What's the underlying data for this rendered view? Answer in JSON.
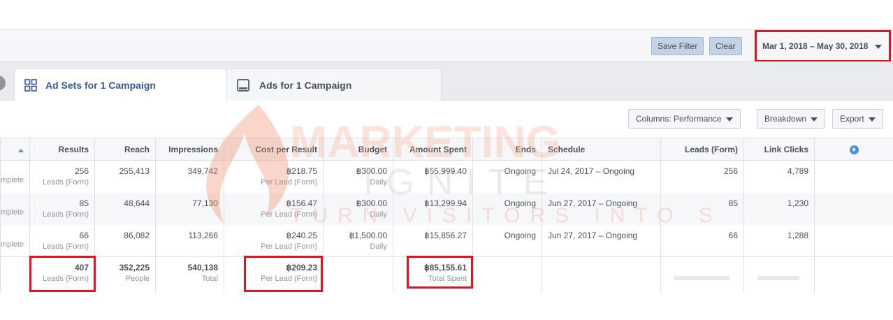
{
  "filterbar": {
    "save_filter": "Save Filter",
    "clear": "Clear",
    "date_range": "Mar 1, 2018 – May 30, 2018"
  },
  "tabs": [
    {
      "label": "Ad Sets for 1 Campaign",
      "icon": "grid-icon",
      "active": true
    },
    {
      "label": "Ads for 1 Campaign",
      "icon": "ad-icon",
      "active": false
    }
  ],
  "toolbar": {
    "columns": "Columns: Performance",
    "breakdown": "Breakdown",
    "export": "Export"
  },
  "watermark": {
    "brand": "MARKETING IGNITE",
    "tagline": "TURN VISITORS INTO SALES!"
  },
  "table": {
    "headers": [
      "Results",
      "Reach",
      "Impressions",
      "Cost per Result",
      "Budget",
      "Amount Spent",
      "Ends",
      "Schedule",
      "Leads (Form)",
      "Link Clicks"
    ],
    "rows": [
      {
        "status": "Complete",
        "results": "256",
        "results_sub": "Leads (Form)",
        "reach": "255,413",
        "impressions": "349,742",
        "cpr": "฿218.75",
        "cpr_sub": "Per Lead (Form)",
        "budget": "฿300.00",
        "budget_sub": "Daily",
        "spent": "฿55,999.40",
        "ends": "Ongoing",
        "schedule": "Jul 24, 2017 – Ongoing",
        "leads": "256",
        "clicks": "4,789"
      },
      {
        "status": "Complete",
        "results": "85",
        "results_sub": "Leads (Form)",
        "reach": "48,644",
        "impressions": "77,130",
        "cpr": "฿156.47",
        "cpr_sub": "Per Lead (Form)",
        "budget": "฿300.00",
        "budget_sub": "Daily",
        "spent": "฿13,299.94",
        "ends": "Ongoing",
        "schedule": "Jun 27, 2017 – Ongoing",
        "leads": "85",
        "clicks": "1,230"
      },
      {
        "status": "Complete",
        "results": "66",
        "results_sub": "Leads (Form)",
        "reach": "86,082",
        "impressions": "113,266",
        "cpr": "฿240.25",
        "cpr_sub": "Per Lead (Form)",
        "budget": "฿1,500.00",
        "budget_sub": "Daily",
        "spent": "฿15,856.27",
        "ends": "Ongoing",
        "schedule": "Jun 27, 2017 – Ongoing",
        "leads": "66",
        "clicks": "1,288"
      }
    ],
    "totals": {
      "results": "407",
      "results_sub": "Leads (Form)",
      "reach": "352,225",
      "reach_sub": "People",
      "impressions": "540,138",
      "impressions_sub": "Total",
      "cpr": "฿209.23",
      "cpr_sub": "Per Lead (Form)",
      "spent": "฿85,155.61",
      "spent_sub": "Total Spent"
    }
  },
  "colors": {
    "highlight": "#e0141e",
    "link": "#365899",
    "add_column": "#4a90e2"
  }
}
